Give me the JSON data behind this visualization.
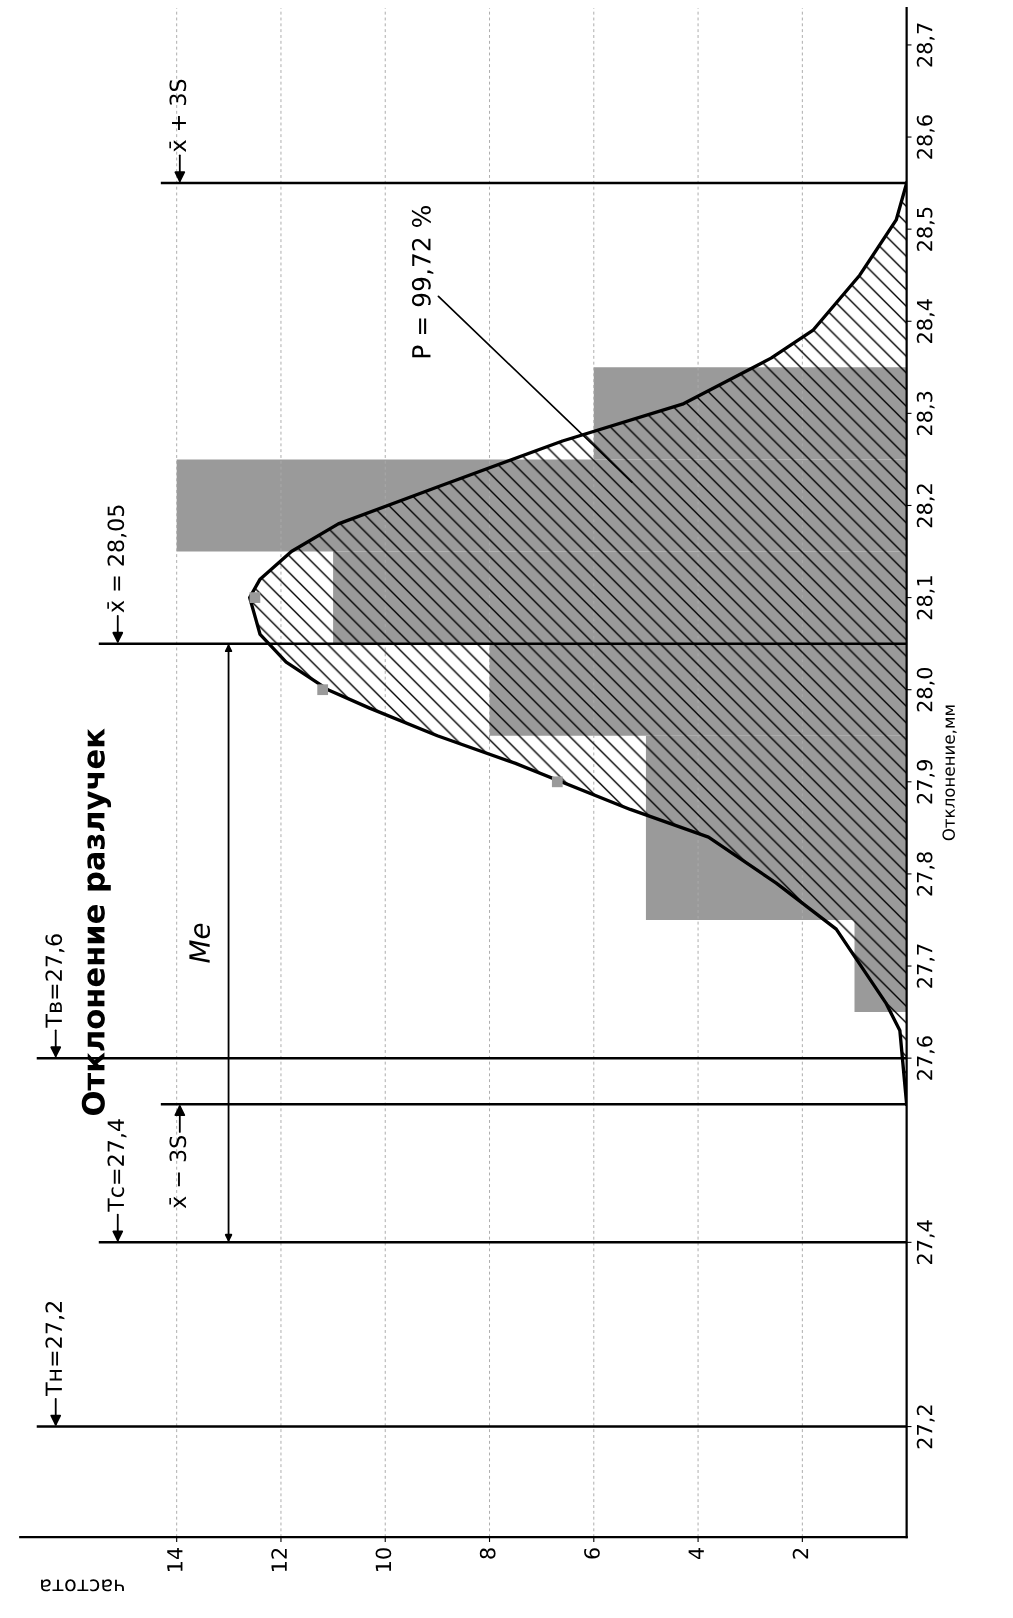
{
  "chart_data": {
    "type": "histogram",
    "orientation": "horizontal",
    "title": "Отклонение разлучек",
    "xlabel": "частота",
    "ylabel": "Отклонение,мм",
    "bins": [
      27.65,
      27.75,
      27.95,
      28.05,
      28.15,
      28.25,
      28.35
    ],
    "values": [
      1,
      5,
      8,
      11,
      14,
      6
    ],
    "color": "#9a9a9a",
    "series": [
      {
        "type": "area",
        "color": "#000000",
        "x": [
          27.55,
          27.63,
          27.66,
          27.74,
          27.79,
          27.84,
          27.87,
          27.92,
          27.95,
          27.98,
          28.0,
          28.03,
          28.06,
          28.1,
          28.12,
          28.15,
          28.18,
          28.22,
          28.27,
          28.31,
          28.36,
          28.39,
          28.45,
          28.51,
          28.55
        ],
        "values": [
          0,
          0.13,
          0.4,
          1.35,
          2.5,
          3.8,
          5.3,
          7.5,
          9.0,
          10.3,
          11.1,
          11.9,
          12.4,
          12.6,
          12.4,
          11.8,
          10.9,
          9.0,
          6.6,
          4.3,
          2.6,
          1.8,
          0.9,
          0.2,
          0
        ]
      },
      {
        "type": "scatter",
        "marker": "square",
        "color": "#9a9a9a",
        "x": [
          27.9,
          28.0,
          28.1
        ],
        "values": [
          6.7,
          11.2,
          12.5
        ]
      }
    ],
    "xlim": [
      17,
      0
    ],
    "xticks": [
      14,
      12,
      10,
      8,
      6,
      4,
      2
    ],
    "ylim": [
      27.08,
      28.74
    ],
    "yticks": [
      {
        "value": 27.2,
        "label": "27,2"
      },
      {
        "value": 27.4,
        "label": "27,4"
      },
      {
        "value": 27.6,
        "label": "27,6"
      },
      {
        "value": 27.7,
        "label": "27,7"
      },
      {
        "value": 27.8,
        "label": "27,8"
      },
      {
        "value": 27.9,
        "label": "27,9"
      },
      {
        "value": 28.0,
        "label": "28,0"
      },
      {
        "value": 28.1,
        "label": "28,1"
      },
      {
        "value": 28.2,
        "label": "28,2"
      },
      {
        "value": 28.3,
        "label": "28,3"
      },
      {
        "value": 28.4,
        "label": "28,4"
      },
      {
        "value": 28.5,
        "label": "28,5"
      },
      {
        "value": 28.6,
        "label": "28,6"
      },
      {
        "value": 28.7,
        "label": "28,7"
      }
    ],
    "ref_lines": [
      {
        "axis": "y",
        "value": 27.2,
        "label": "Тн=27,2"
      },
      {
        "axis": "y",
        "value": 27.4,
        "label": "Тс=27,4"
      },
      {
        "axis": "y",
        "value": 27.55,
        "label": "x̄ − 3S"
      },
      {
        "axis": "y",
        "value": 27.6,
        "label": "Тв=27,6"
      },
      {
        "axis": "y",
        "value": 28.05,
        "label": "x̄ = 28,05"
      },
      {
        "axis": "y",
        "value": 28.55,
        "label": "x̄ + 3S"
      }
    ],
    "annotations": [
      "Me",
      "P = 99,72 %"
    ],
    "grid": "x"
  }
}
